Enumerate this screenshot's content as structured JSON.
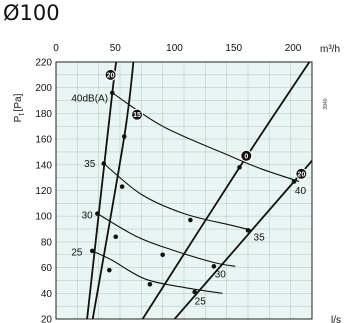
{
  "title": "Ø100",
  "side_code": "3940",
  "chart_data": {
    "type": "line",
    "title": "Ø100",
    "ylabel": "P",
    "ylabel_sub": "t",
    "ylabel_unit": "[Pa]",
    "xlabel_top": "m³/h",
    "xlabel_bottom": "l/s",
    "y_range": [
      20,
      220
    ],
    "y_ticks": [
      20,
      40,
      60,
      80,
      100,
      120,
      140,
      160,
      180,
      200,
      220
    ],
    "x_top_range": [
      0,
      216
    ],
    "x_top_ticks": [
      0,
      50,
      100,
      150,
      200
    ],
    "x_bottom_range": [
      0,
      60
    ],
    "x_bottom_ticks": [
      0,
      10,
      20,
      30,
      40,
      50,
      60
    ],
    "grid": true,
    "system_curves": [
      {
        "badge": "20",
        "points": [
          [
            7.3,
            20
          ],
          [
            13.2,
            196
          ],
          [
            14.3,
            222
          ]
        ]
      },
      {
        "badge": "15",
        "points": [
          [
            8.6,
            20
          ],
          [
            16.0,
            162
          ],
          [
            18.2,
            222
          ]
        ]
      },
      {
        "badge": "0",
        "points": [
          [
            20.3,
            20
          ],
          [
            43.0,
            138
          ],
          [
            59.8,
            222
          ]
        ]
      },
      {
        "badge": "20",
        "points": [
          [
            27.8,
            20
          ],
          [
            55.8,
            127
          ],
          [
            62.2,
            152
          ]
        ]
      }
    ],
    "sound_curves": [
      {
        "label": "40dB(A)",
        "points": [
          [
            13.2,
            196
          ],
          [
            25.0,
            170
          ],
          [
            40.0,
            148
          ],
          [
            48.0,
            137
          ],
          [
            57.0,
            127
          ]
        ]
      },
      {
        "label": "35",
        "points": [
          [
            11.2,
            141
          ],
          [
            20.0,
            117
          ],
          [
            30.0,
            102
          ],
          [
            41.0,
            93
          ],
          [
            46.0,
            89
          ]
        ]
      },
      {
        "label": "30",
        "points": [
          [
            9.7,
            102
          ],
          [
            19.0,
            84
          ],
          [
            27.0,
            74
          ],
          [
            37.0,
            64
          ],
          [
            42.0,
            61
          ]
        ]
      },
      {
        "label": "25",
        "points": [
          [
            8.5,
            73
          ],
          [
            13.0,
            66
          ],
          [
            21.0,
            51
          ],
          [
            31.0,
            44
          ],
          [
            39.0,
            40
          ]
        ]
      }
    ],
    "intersections": [
      [
        13.2,
        196
      ],
      [
        16.0,
        162
      ],
      [
        43.0,
        138
      ],
      [
        55.8,
        127
      ],
      [
        11.2,
        141
      ],
      [
        15.5,
        123
      ],
      [
        31.5,
        97
      ],
      [
        45.0,
        89
      ],
      [
        9.7,
        102
      ],
      [
        14.0,
        84
      ],
      [
        25.0,
        70
      ],
      [
        37.0,
        61
      ],
      [
        8.5,
        73
      ],
      [
        12.5,
        58
      ],
      [
        22.0,
        47
      ],
      [
        32.5,
        41
      ]
    ]
  }
}
